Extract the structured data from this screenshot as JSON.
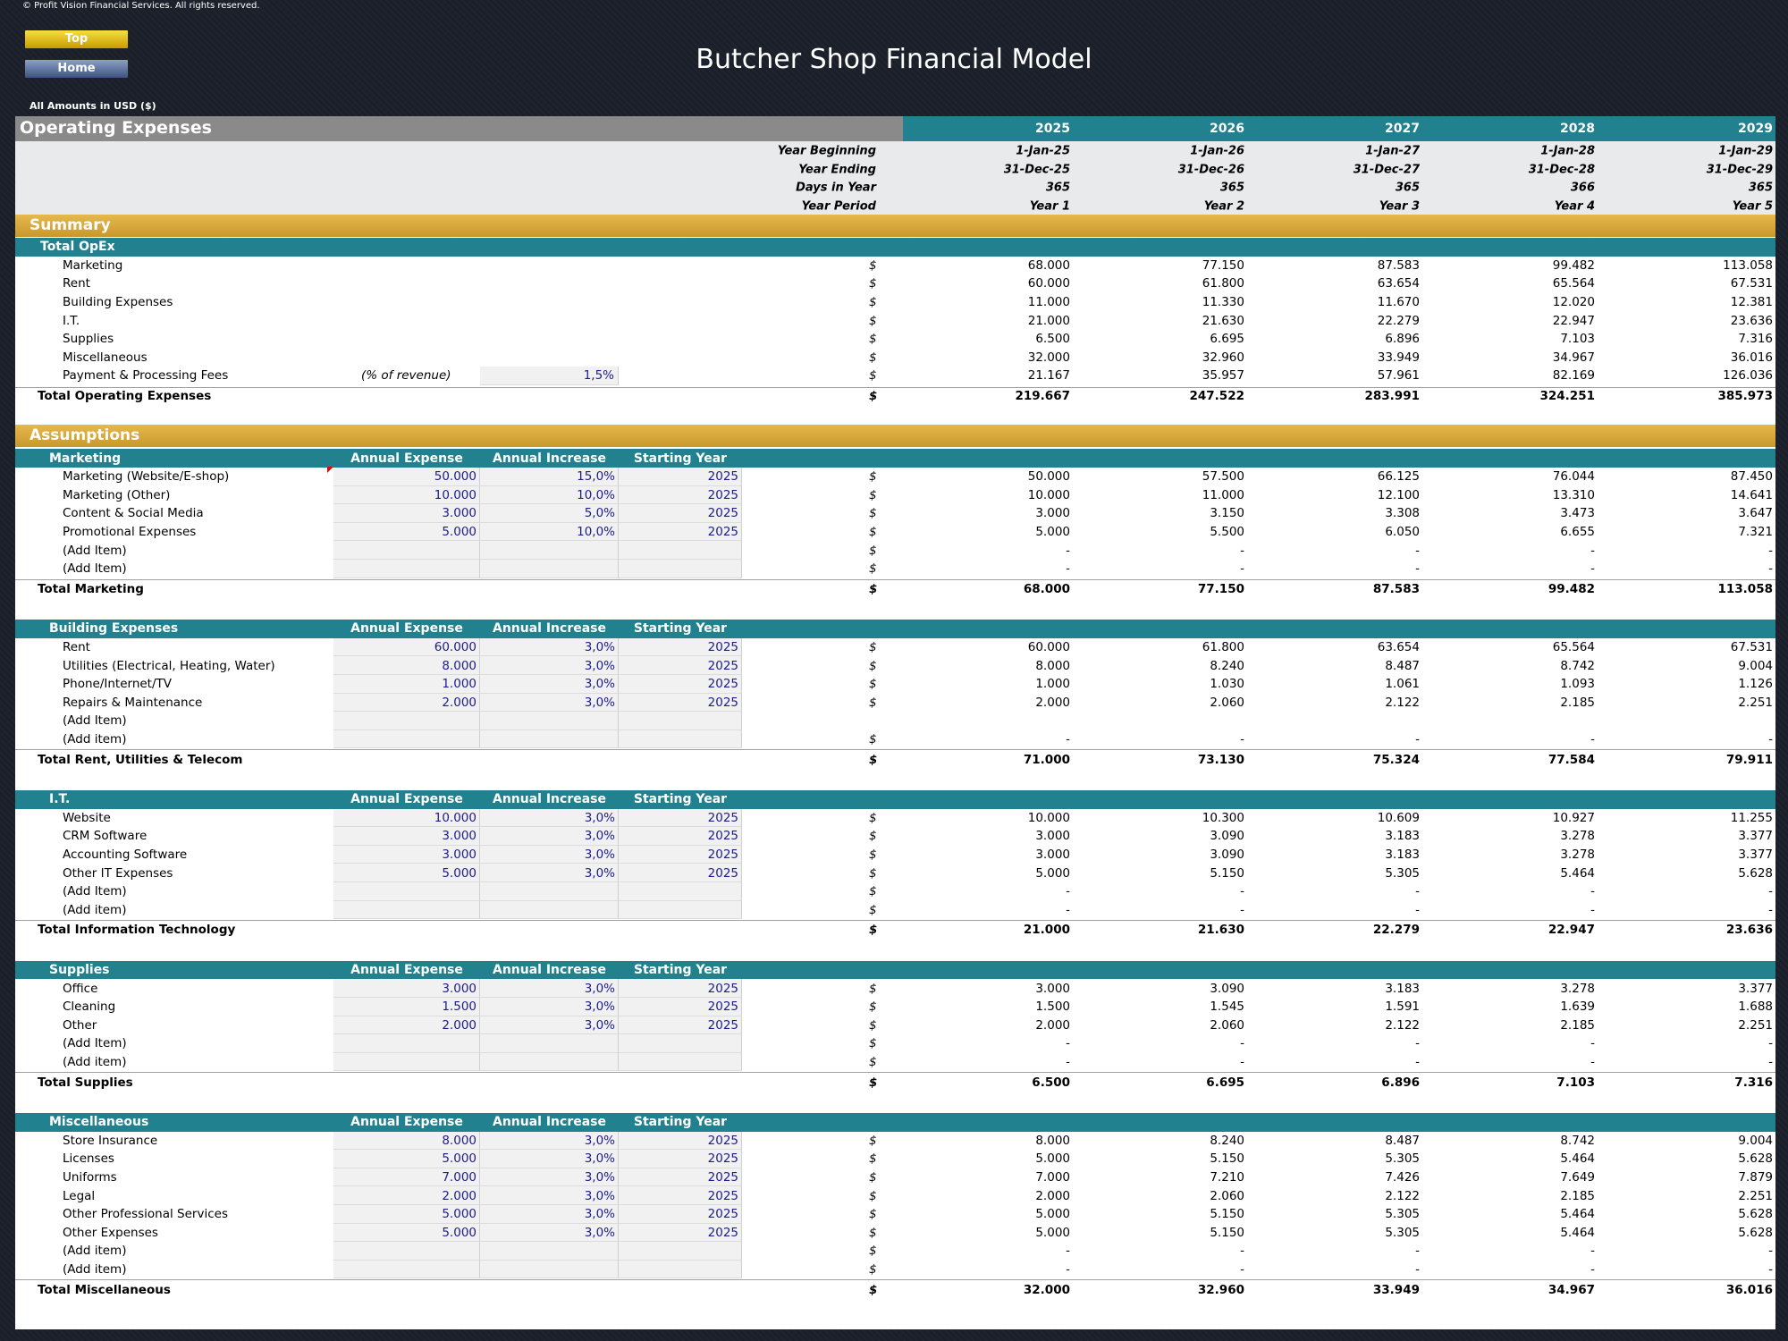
{
  "copyright": "© Profit Vision Financial Services. All rights reserved.",
  "nav": {
    "top": "Top",
    "home": "Home"
  },
  "title": "Butcher Shop Financial Model",
  "amounts_label": "All Amounts in  USD ($)",
  "sheet": {
    "section_title": "Operating Expenses",
    "years": [
      "2025",
      "2026",
      "2027",
      "2028",
      "2029"
    ],
    "meta": [
      {
        "label": "Year Beginning",
        "values": [
          "1-Jan-25",
          "1-Jan-26",
          "1-Jan-27",
          "1-Jan-28",
          "1-Jan-29"
        ]
      },
      {
        "label": "Year Ending",
        "values": [
          "31-Dec-25",
          "31-Dec-26",
          "31-Dec-27",
          "31-Dec-28",
          "31-Dec-29"
        ]
      },
      {
        "label": "Days in Year",
        "values": [
          "365",
          "365",
          "365",
          "366",
          "365"
        ]
      },
      {
        "label": "Year Period",
        "values": [
          "Year 1",
          "Year 2",
          "Year 3",
          "Year 4",
          "Year 5"
        ]
      }
    ]
  },
  "summary": {
    "title": "Summary",
    "subheader": "Total OpEx",
    "rows": [
      {
        "label": "Marketing",
        "cur": "$",
        "values": [
          "68.000",
          "77.150",
          "87.583",
          "99.482",
          "113.058"
        ]
      },
      {
        "label": "Rent",
        "cur": "$",
        "values": [
          "60.000",
          "61.800",
          "63.654",
          "65.564",
          "67.531"
        ]
      },
      {
        "label": "Building Expenses",
        "cur": "$",
        "values": [
          "11.000",
          "11.330",
          "11.670",
          "12.020",
          "12.381"
        ]
      },
      {
        "label": "I.T.",
        "cur": "$",
        "values": [
          "21.000",
          "21.630",
          "22.279",
          "22.947",
          "23.636"
        ]
      },
      {
        "label": "Supplies",
        "cur": "$",
        "values": [
          "6.500",
          "6.695",
          "6.896",
          "7.103",
          "7.316"
        ]
      },
      {
        "label": "Miscellaneous",
        "cur": "$",
        "values": [
          "32.000",
          "32.960",
          "33.949",
          "34.967",
          "36.016"
        ]
      },
      {
        "label": "Payment & Processing Fees",
        "note": "(% of revenue)",
        "pct": "1,5%",
        "cur": "$",
        "values": [
          "21.167",
          "35.957",
          "57.961",
          "82.169",
          "126.036"
        ]
      }
    ],
    "total": {
      "label": "Total Operating Expenses",
      "cur": "$",
      "values": [
        "219.667",
        "247.522",
        "283.991",
        "324.251",
        "385.973"
      ]
    }
  },
  "assumptions": {
    "title": "Assumptions",
    "col_headers": [
      "Annual Expense",
      "Annual Increase",
      "Starting Year"
    ],
    "groups": [
      {
        "name": "Marketing",
        "rows": [
          {
            "label": "Marketing (Website/E-shop)",
            "inputs": [
              "50.000",
              "15,0%",
              "2025"
            ],
            "cur": "$",
            "values": [
              "50.000",
              "57.500",
              "66.125",
              "76.044",
              "87.450"
            ]
          },
          {
            "label": "Marketing (Other)",
            "inputs": [
              "10.000",
              "10,0%",
              "2025"
            ],
            "cur": "$",
            "values": [
              "10.000",
              "11.000",
              "12.100",
              "13.310",
              "14.641"
            ]
          },
          {
            "label": "Content & Social Media",
            "inputs": [
              "3.000",
              "5,0%",
              "2025"
            ],
            "cur": "$",
            "values": [
              "3.000",
              "3.150",
              "3.308",
              "3.473",
              "3.647"
            ]
          },
          {
            "label": "Promotional Expenses",
            "inputs": [
              "5.000",
              "10,0%",
              "2025"
            ],
            "cur": "$",
            "values": [
              "5.000",
              "5.500",
              "6.050",
              "6.655",
              "7.321"
            ]
          },
          {
            "label": "(Add Item)",
            "inputs": [
              "",
              "",
              ""
            ],
            "cur": "$",
            "values": [
              "-",
              "-",
              "-",
              "-",
              "-"
            ]
          },
          {
            "label": "(Add Item)",
            "inputs": [
              "",
              "",
              ""
            ],
            "cur": "$",
            "values": [
              "-",
              "-",
              "-",
              "-",
              "-"
            ]
          }
        ],
        "total": {
          "label": "Total Marketing",
          "cur": "$",
          "values": [
            "68.000",
            "77.150",
            "87.583",
            "99.482",
            "113.058"
          ]
        }
      },
      {
        "name": "Building Expenses",
        "rows": [
          {
            "label": "Rent",
            "inputs": [
              "60.000",
              "3,0%",
              "2025"
            ],
            "cur": "$",
            "values": [
              "60.000",
              "61.800",
              "63.654",
              "65.564",
              "67.531"
            ]
          },
          {
            "label": "Utilities (Electrical, Heating, Water)",
            "inputs": [
              "8.000",
              "3,0%",
              "2025"
            ],
            "cur": "$",
            "values": [
              "8.000",
              "8.240",
              "8.487",
              "8.742",
              "9.004"
            ]
          },
          {
            "label": "Phone/Internet/TV",
            "inputs": [
              "1.000",
              "3,0%",
              "2025"
            ],
            "cur": "$",
            "values": [
              "1.000",
              "1.030",
              "1.061",
              "1.093",
              "1.126"
            ]
          },
          {
            "label": "Repairs & Maintenance",
            "inputs": [
              "2.000",
              "3,0%",
              "2025"
            ],
            "cur": "$",
            "values": [
              "2.000",
              "2.060",
              "2.122",
              "2.185",
              "2.251"
            ]
          },
          {
            "label": "(Add Item)",
            "inputs": [
              "",
              "",
              ""
            ],
            "cur": "",
            "values": [
              "",
              "",
              "",
              "",
              ""
            ]
          },
          {
            "label": "(Add item)",
            "inputs": [
              "",
              "",
              ""
            ],
            "cur": "$",
            "values": [
              "-",
              "-",
              "-",
              "-",
              "-"
            ]
          }
        ],
        "total": {
          "label": "Total Rent, Utilities & Telecom",
          "cur": "$",
          "values": [
            "71.000",
            "73.130",
            "75.324",
            "77.584",
            "79.911"
          ]
        }
      },
      {
        "name": "I.T.",
        "rows": [
          {
            "label": "Website",
            "inputs": [
              "10.000",
              "3,0%",
              "2025"
            ],
            "cur": "$",
            "values": [
              "10.000",
              "10.300",
              "10.609",
              "10.927",
              "11.255"
            ]
          },
          {
            "label": "CRM Software",
            "inputs": [
              "3.000",
              "3,0%",
              "2025"
            ],
            "cur": "$",
            "values": [
              "3.000",
              "3.090",
              "3.183",
              "3.278",
              "3.377"
            ]
          },
          {
            "label": "Accounting Software",
            "inputs": [
              "3.000",
              "3,0%",
              "2025"
            ],
            "cur": "$",
            "values": [
              "3.000",
              "3.090",
              "3.183",
              "3.278",
              "3.377"
            ]
          },
          {
            "label": "Other IT Expenses",
            "inputs": [
              "5.000",
              "3,0%",
              "2025"
            ],
            "cur": "$",
            "values": [
              "5.000",
              "5.150",
              "5.305",
              "5.464",
              "5.628"
            ]
          },
          {
            "label": "(Add Item)",
            "inputs": [
              "",
              "",
              ""
            ],
            "cur": "$",
            "values": [
              "-",
              "-",
              "-",
              "-",
              "-"
            ]
          },
          {
            "label": "(Add item)",
            "inputs": [
              "",
              "",
              ""
            ],
            "cur": "$",
            "values": [
              "-",
              "-",
              "-",
              "-",
              "-"
            ]
          }
        ],
        "total": {
          "label": "Total Information Technology",
          "cur": "$",
          "values": [
            "21.000",
            "21.630",
            "22.279",
            "22.947",
            "23.636"
          ]
        }
      },
      {
        "name": "Supplies",
        "rows": [
          {
            "label": "Office",
            "inputs": [
              "3.000",
              "3,0%",
              "2025"
            ],
            "cur": "$",
            "values": [
              "3.000",
              "3.090",
              "3.183",
              "3.278",
              "3.377"
            ]
          },
          {
            "label": "Cleaning",
            "inputs": [
              "1.500",
              "3,0%",
              "2025"
            ],
            "cur": "$",
            "values": [
              "1.500",
              "1.545",
              "1.591",
              "1.639",
              "1.688"
            ]
          },
          {
            "label": "Other",
            "inputs": [
              "2.000",
              "3,0%",
              "2025"
            ],
            "cur": "$",
            "values": [
              "2.000",
              "2.060",
              "2.122",
              "2.185",
              "2.251"
            ]
          },
          {
            "label": "(Add Item)",
            "inputs": [
              "",
              "",
              ""
            ],
            "cur": "$",
            "values": [
              "-",
              "-",
              "-",
              "-",
              "-"
            ]
          },
          {
            "label": "(Add item)",
            "inputs": [
              "",
              "",
              ""
            ],
            "cur": "$",
            "values": [
              "-",
              "-",
              "-",
              "-",
              "-"
            ]
          }
        ],
        "total": {
          "label": "Total Supplies",
          "cur": "$",
          "values": [
            "6.500",
            "6.695",
            "6.896",
            "7.103",
            "7.316"
          ]
        }
      },
      {
        "name": "Miscellaneous",
        "rows": [
          {
            "label": "Store Insurance",
            "inputs": [
              "8.000",
              "3,0%",
              "2025"
            ],
            "cur": "$",
            "values": [
              "8.000",
              "8.240",
              "8.487",
              "8.742",
              "9.004"
            ]
          },
          {
            "label": "Licenses",
            "inputs": [
              "5.000",
              "3,0%",
              "2025"
            ],
            "cur": "$",
            "values": [
              "5.000",
              "5.150",
              "5.305",
              "5.464",
              "5.628"
            ]
          },
          {
            "label": "Uniforms",
            "inputs": [
              "7.000",
              "3,0%",
              "2025"
            ],
            "cur": "$",
            "values": [
              "7.000",
              "7.210",
              "7.426",
              "7.649",
              "7.879"
            ]
          },
          {
            "label": "Legal",
            "inputs": [
              "2.000",
              "3,0%",
              "2025"
            ],
            "cur": "$",
            "values": [
              "2.000",
              "2.060",
              "2.122",
              "2.185",
              "2.251"
            ]
          },
          {
            "label": "Other Professional Services",
            "inputs": [
              "5.000",
              "3,0%",
              "2025"
            ],
            "cur": "$",
            "values": [
              "5.000",
              "5.150",
              "5.305",
              "5.464",
              "5.628"
            ]
          },
          {
            "label": "Other Expenses",
            "inputs": [
              "5.000",
              "3,0%",
              "2025"
            ],
            "cur": "$",
            "values": [
              "5.000",
              "5.150",
              "5.305",
              "5.464",
              "5.628"
            ]
          },
          {
            "label": "(Add item)",
            "inputs": [
              "",
              "",
              ""
            ],
            "cur": "$",
            "values": [
              "-",
              "-",
              "-",
              "-",
              "-"
            ]
          },
          {
            "label": "(Add item)",
            "inputs": [
              "",
              "",
              ""
            ],
            "cur": "$",
            "values": [
              "-",
              "-",
              "-",
              "-",
              "-"
            ]
          }
        ],
        "total": {
          "label": "Total Miscellaneous",
          "cur": "$",
          "values": [
            "32.000",
            "32.960",
            "33.949",
            "34.967",
            "36.016"
          ]
        }
      }
    ]
  },
  "colors": {
    "teal": "#21818f",
    "gold": "#d6a83a",
    "input_text": "#1c1c8c",
    "top_button": "#e8c21c",
    "home_button": "#5a6ea0"
  }
}
